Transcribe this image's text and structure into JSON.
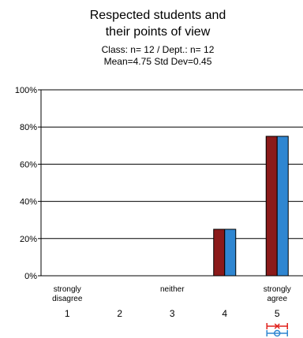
{
  "chart_data": {
    "type": "bar",
    "title": [
      "Respected students and",
      "their points of view"
    ],
    "subtitle": [
      "Class: n=  12 / Dept.: n=  12",
      "Mean=4.75   Std Dev=0.45"
    ],
    "categories": [
      "1",
      "2",
      "3",
      "4",
      "5"
    ],
    "category_text": [
      "strongly disagree",
      "",
      "neither",
      "",
      "strongly agree"
    ],
    "y_ticks": [
      "0%",
      "20%",
      "40%",
      "60%",
      "80%",
      "100%"
    ],
    "ylim": [
      0,
      100
    ],
    "grid": true,
    "series": [
      {
        "values": [
          0,
          0,
          0,
          25,
          75
        ],
        "color": "#8b1a1a"
      },
      {
        "values": [
          0,
          0,
          0,
          25,
          75
        ],
        "color": "#2f86d1"
      }
    ],
    "mean_marker": {
      "category": "5",
      "colors": [
        "#e0201b",
        "#2f86d1"
      ]
    }
  }
}
